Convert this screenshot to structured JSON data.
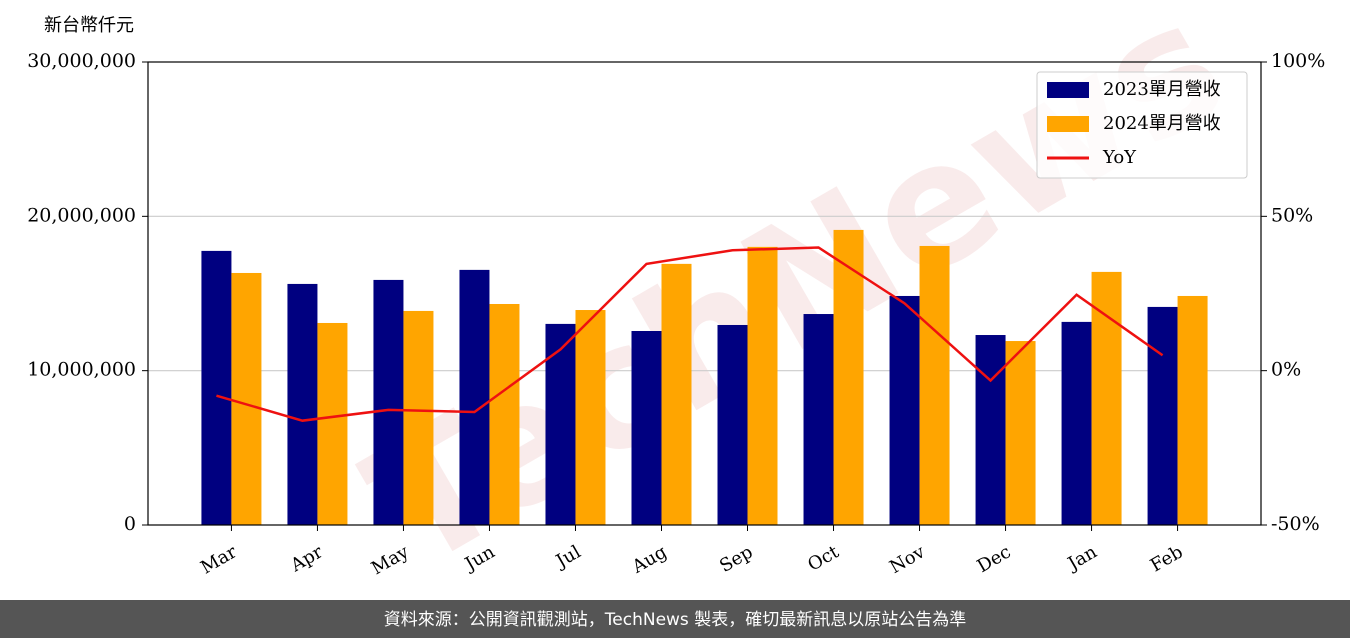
{
  "chart_data": {
    "type": "bar_line",
    "y_label": "新台幣仟元",
    "watermark": "TechNews",
    "categories": [
      "Mar",
      "Apr",
      "May",
      "Jun",
      "Jul",
      "Aug",
      "Sep",
      "Oct",
      "Nov",
      "Dec",
      "Jan",
      "Feb"
    ],
    "series": [
      {
        "name": "2023單月營收",
        "type": "bar",
        "color": "#000080",
        "values": [
          17760000,
          15620000,
          15880000,
          16530000,
          13030000,
          12570000,
          12960000,
          13670000,
          14840000,
          12310000,
          13160000,
          14130000
        ]
      },
      {
        "name": "2024單月營收",
        "type": "bar",
        "color": "#ffa500",
        "values": [
          16330000,
          13090000,
          13870000,
          14320000,
          13930000,
          16920000,
          18020000,
          19120000,
          18080000,
          11920000,
          16400000,
          14840000
        ]
      },
      {
        "name": "YoY",
        "type": "line",
        "axis": "y2",
        "color": "#ee1111",
        "values": [
          -8.1,
          -16.2,
          -12.7,
          -13.4,
          6.9,
          34.6,
          39.0,
          39.9,
          21.8,
          -3.2,
          24.6,
          5.0
        ]
      }
    ],
    "ylim": [
      0,
      30000000
    ],
    "yticks": [
      0,
      {
        "value": 10000000,
        "label": "10,000,000"
      },
      {
        "value": 20000000,
        "label": "20,000,000"
      },
      {
        "value": 30000000,
        "label": "30,000,000"
      }
    ],
    "y2lim": [
      -50,
      100
    ],
    "y2ticks": [
      {
        "value": -50,
        "label": "-50%"
      },
      {
        "value": 0,
        "label": "0%"
      },
      {
        "value": 50,
        "label": "50%"
      },
      {
        "value": 100,
        "label": "100%"
      }
    ],
    "grid": true,
    "legend": "upper right"
  },
  "footer": "資料來源：公開資訊觀測站，TechNews 製表，確切最新訊息以原站公告為準"
}
